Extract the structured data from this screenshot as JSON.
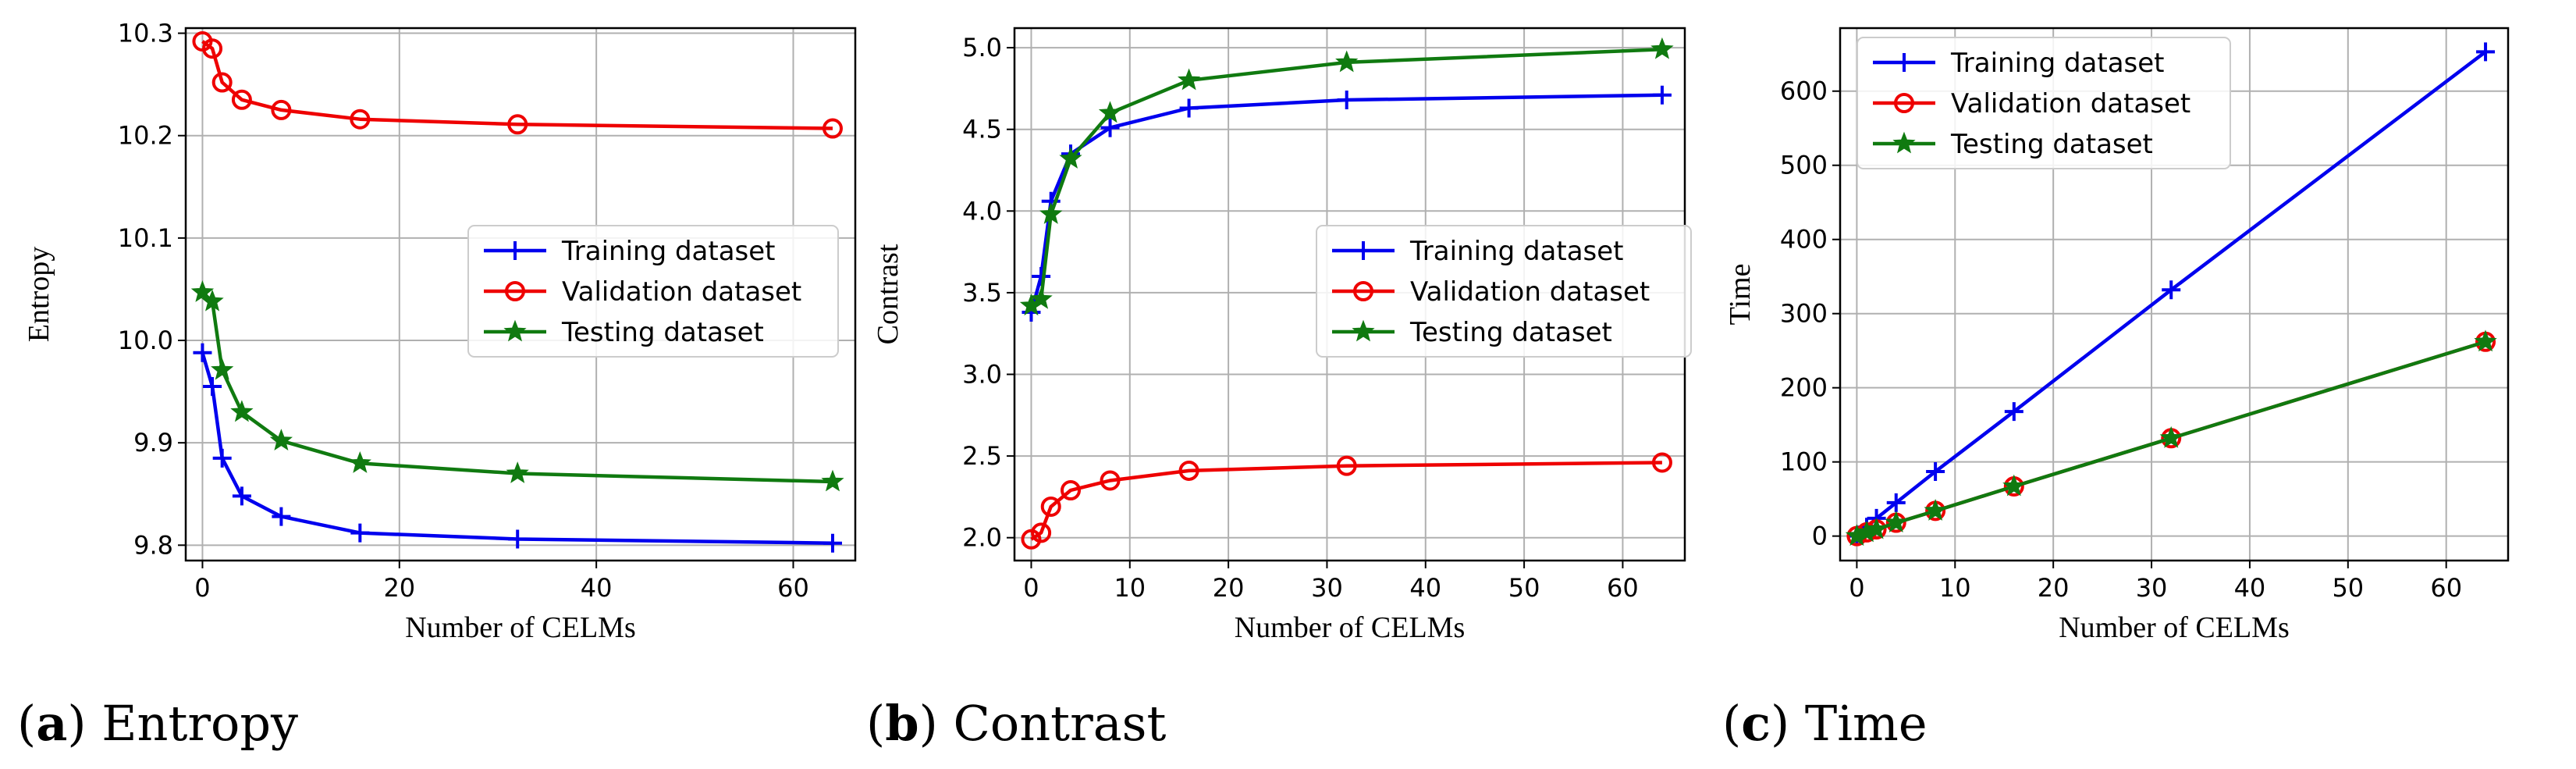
{
  "legend_entries": {
    "training": "Training dataset",
    "validation": "Validation dataset",
    "testing": "Testing dataset"
  },
  "colors": {
    "training": "#0000ee",
    "validation": "#ee0000",
    "testing": "#107a10",
    "grid": "#b0b0b0"
  },
  "captions": [
    {
      "letter": "a",
      "text": "Entropy"
    },
    {
      "letter": "b",
      "text": "Contrast"
    },
    {
      "letter": "c",
      "text": "Time"
    }
  ],
  "chart_data": [
    {
      "type": "line",
      "title": "Entropy",
      "xlabel": "Number of CELMs",
      "ylabel": "Entropy",
      "xlim": [
        -1.7,
        66.3
      ],
      "ylim": [
        9.785,
        10.305
      ],
      "xticks": [
        0,
        20,
        40,
        60
      ],
      "yticks": [
        9.8,
        9.9,
        10.0,
        10.1,
        10.2,
        10.3
      ],
      "ytick_decimals": 1,
      "grid": true,
      "legend_position": "center-right",
      "x": [
        0,
        1,
        2,
        4,
        8,
        16,
        32,
        64
      ],
      "series": [
        {
          "name": "Training dataset",
          "key": "training",
          "marker": "plus",
          "values": [
            9.988,
            9.955,
            9.885,
            9.848,
            9.828,
            9.812,
            9.806,
            9.802
          ]
        },
        {
          "name": "Validation dataset",
          "key": "validation",
          "marker": "circle",
          "values": [
            10.292,
            10.285,
            10.252,
            10.235,
            10.225,
            10.216,
            10.211,
            10.207
          ]
        },
        {
          "name": "Testing dataset",
          "key": "testing",
          "marker": "star",
          "values": [
            10.047,
            10.038,
            9.971,
            9.93,
            9.902,
            9.88,
            9.87,
            9.862
          ]
        }
      ]
    },
    {
      "type": "line",
      "title": "Contrast",
      "xlabel": "Number of CELMs",
      "ylabel": "Contrast",
      "xlim": [
        -1.7,
        66.3
      ],
      "ylim": [
        1.86,
        5.12
      ],
      "xticks": [
        0,
        10,
        20,
        30,
        40,
        50,
        60
      ],
      "yticks": [
        2.0,
        2.5,
        3.0,
        3.5,
        4.0,
        4.5,
        5.0
      ],
      "ytick_decimals": 1,
      "grid": true,
      "legend_position": "center-right",
      "x": [
        0,
        1,
        2,
        4,
        8,
        16,
        32,
        64
      ],
      "series": [
        {
          "name": "Training dataset",
          "key": "training",
          "marker": "plus",
          "values": [
            3.38,
            3.6,
            4.06,
            4.35,
            4.51,
            4.63,
            4.68,
            4.71
          ]
        },
        {
          "name": "Validation dataset",
          "key": "validation",
          "marker": "circle",
          "values": [
            1.99,
            2.03,
            2.19,
            2.29,
            2.35,
            2.41,
            2.44,
            2.46
          ]
        },
        {
          "name": "Testing dataset",
          "key": "testing",
          "marker": "star",
          "values": [
            3.42,
            3.46,
            3.98,
            4.32,
            4.6,
            4.8,
            4.91,
            4.99
          ]
        }
      ]
    },
    {
      "type": "line",
      "title": "Time",
      "xlabel": "Number of CELMs",
      "ylabel": "Time",
      "xlim": [
        -1.7,
        66.3
      ],
      "ylim": [
        -33,
        685
      ],
      "xticks": [
        0,
        10,
        20,
        30,
        40,
        50,
        60
      ],
      "yticks": [
        0,
        100,
        200,
        300,
        400,
        500,
        600
      ],
      "ytick_decimals": 0,
      "grid": true,
      "legend_position": "top-left",
      "x": [
        0,
        1,
        2,
        4,
        8,
        16,
        32,
        64
      ],
      "series": [
        {
          "name": "Training dataset",
          "key": "training",
          "marker": "plus",
          "values": [
            0,
            12,
            24,
            45,
            87,
            168,
            332,
            653
          ]
        },
        {
          "name": "Validation dataset",
          "key": "validation",
          "marker": "circle",
          "values": [
            0,
            5,
            9,
            18,
            34,
            67,
            132,
            262
          ]
        },
        {
          "name": "Testing dataset",
          "key": "testing",
          "marker": "star",
          "values": [
            0,
            5,
            9,
            18,
            34,
            67,
            132,
            262
          ]
        }
      ]
    }
  ]
}
